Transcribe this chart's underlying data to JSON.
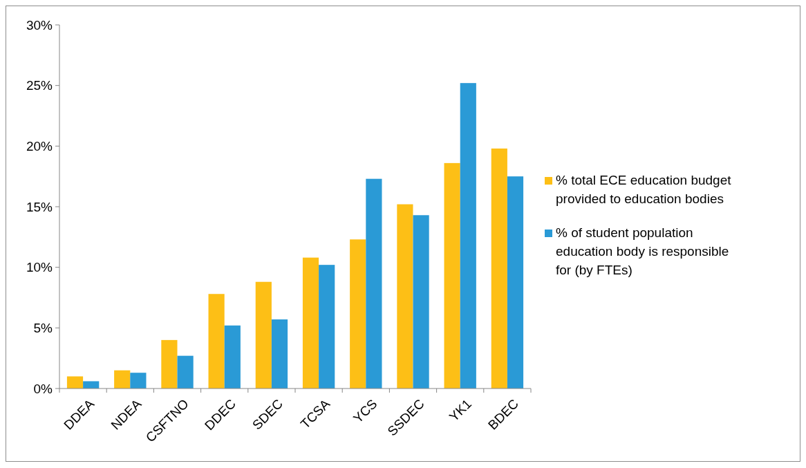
{
  "chart_data": {
    "type": "bar",
    "categories": [
      "DDEA",
      "NDEA",
      "CSFTNO",
      "DDEC",
      "SDEC",
      "TCSA",
      "YCS",
      "SSDEC",
      "YK1",
      "BDEC"
    ],
    "series": [
      {
        "name": "% total ECE education budget provided to education bodies",
        "color": "#fdbf16",
        "values": [
          1.0,
          1.5,
          4.0,
          7.8,
          8.8,
          10.8,
          12.3,
          15.2,
          18.6,
          19.8
        ]
      },
      {
        "name": "% of student population education body is responsible for (by FTEs)",
        "color": "#2a9ad6",
        "values": [
          0.6,
          1.3,
          2.7,
          5.2,
          5.7,
          10.2,
          17.3,
          14.3,
          25.2,
          17.5
        ]
      }
    ],
    "ylim": [
      0,
      30
    ],
    "yticks": [
      {
        "value": 0,
        "label": "0%"
      },
      {
        "value": 5,
        "label": "5%"
      },
      {
        "value": 10,
        "label": "10%"
      },
      {
        "value": 15,
        "label": "15%"
      },
      {
        "value": 20,
        "label": "20%"
      },
      {
        "value": 25,
        "label": "25%"
      },
      {
        "value": 30,
        "label": "30%"
      }
    ],
    "grid": false,
    "legend": "right"
  }
}
